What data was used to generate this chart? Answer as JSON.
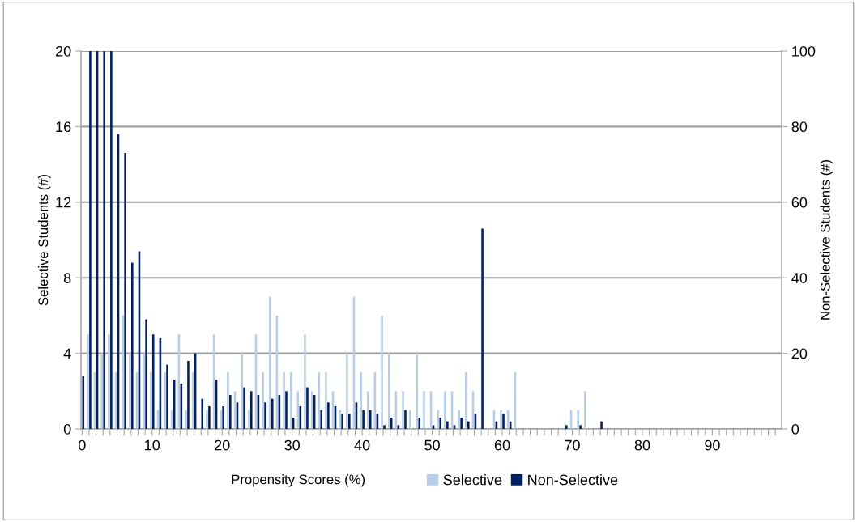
{
  "chart_data": {
    "type": "bar",
    "xlabel": "Propensity Scores (%)",
    "ylabel": "Selective Students (#)",
    "y2label": "Non-Selective Students (#)",
    "categories": [
      "0",
      null,
      null,
      null,
      null,
      null,
      null,
      null,
      null,
      null,
      "10",
      null,
      null,
      null,
      null,
      null,
      null,
      null,
      null,
      null,
      "20",
      null,
      null,
      null,
      null,
      null,
      null,
      null,
      null,
      null,
      "30",
      null,
      null,
      null,
      null,
      null,
      null,
      null,
      null,
      null,
      "40",
      null,
      null,
      null,
      null,
      null,
      null,
      null,
      null,
      null,
      "50",
      null,
      null,
      null,
      null,
      null,
      null,
      null,
      null,
      null,
      "60",
      null,
      null,
      null,
      null,
      null,
      null,
      null,
      null,
      null,
      "70",
      null,
      null,
      null,
      null,
      null,
      null,
      null,
      null,
      null,
      "80",
      null,
      null,
      null,
      null,
      null,
      null,
      null,
      null,
      null,
      "90",
      null,
      null,
      null,
      null,
      null,
      null,
      null,
      null,
      null
    ],
    "series": [
      {
        "name": "Selective",
        "color": "#b9cde5",
        "values": [
          0,
          5,
          3,
          4,
          5,
          3,
          6,
          4,
          3,
          4,
          3,
          1,
          3,
          1,
          5,
          1,
          3,
          0,
          1,
          5,
          1,
          3,
          2,
          4,
          1,
          5,
          3,
          7,
          6,
          3,
          3,
          2,
          5,
          2,
          3,
          3,
          2,
          1,
          4,
          7,
          3,
          2,
          3,
          6,
          4,
          2,
          2,
          1,
          4,
          2,
          2,
          1,
          2,
          2,
          1,
          3,
          2,
          0,
          0,
          1,
          1,
          1,
          3,
          0,
          0,
          0,
          0,
          0,
          0,
          0,
          1,
          1,
          2,
          0,
          0,
          0,
          0,
          0,
          0,
          0,
          0,
          0,
          0,
          0,
          0,
          0,
          0,
          0,
          0,
          0,
          0,
          0,
          0,
          0,
          0,
          0,
          0,
          0,
          0,
          0
        ]
      },
      {
        "name": "Non-Selective",
        "color": "#002060",
        "axis": "y2",
        "values": [
          14,
          100,
          100,
          100,
          100,
          78,
          73,
          44,
          47,
          29,
          25,
          24,
          17,
          13,
          12,
          18,
          20,
          8,
          6,
          13,
          6,
          9,
          7,
          11,
          10,
          9,
          7,
          8,
          9,
          10,
          3,
          6,
          11,
          9,
          5,
          7,
          6,
          4,
          4,
          7,
          5,
          5,
          4,
          1,
          3,
          1,
          5,
          0,
          3,
          0,
          1,
          3,
          2,
          1,
          3,
          2,
          4,
          53,
          0,
          2,
          4,
          2,
          0,
          0,
          0,
          0,
          0,
          0,
          0,
          1,
          0,
          1,
          0,
          0,
          2,
          0,
          0,
          0,
          0,
          0,
          0,
          0,
          0,
          0,
          0,
          0,
          0,
          0,
          0,
          0,
          0,
          0,
          0,
          0,
          0,
          0,
          0,
          0,
          0,
          0
        ]
      }
    ],
    "ylim": [
      0,
      20
    ],
    "yticks": [
      0,
      4,
      8,
      12,
      16,
      20
    ],
    "y2lim": [
      0,
      100
    ],
    "y2ticks": [
      0,
      20,
      40,
      60,
      80,
      100
    ],
    "grid": "y",
    "legend": "bottom"
  }
}
